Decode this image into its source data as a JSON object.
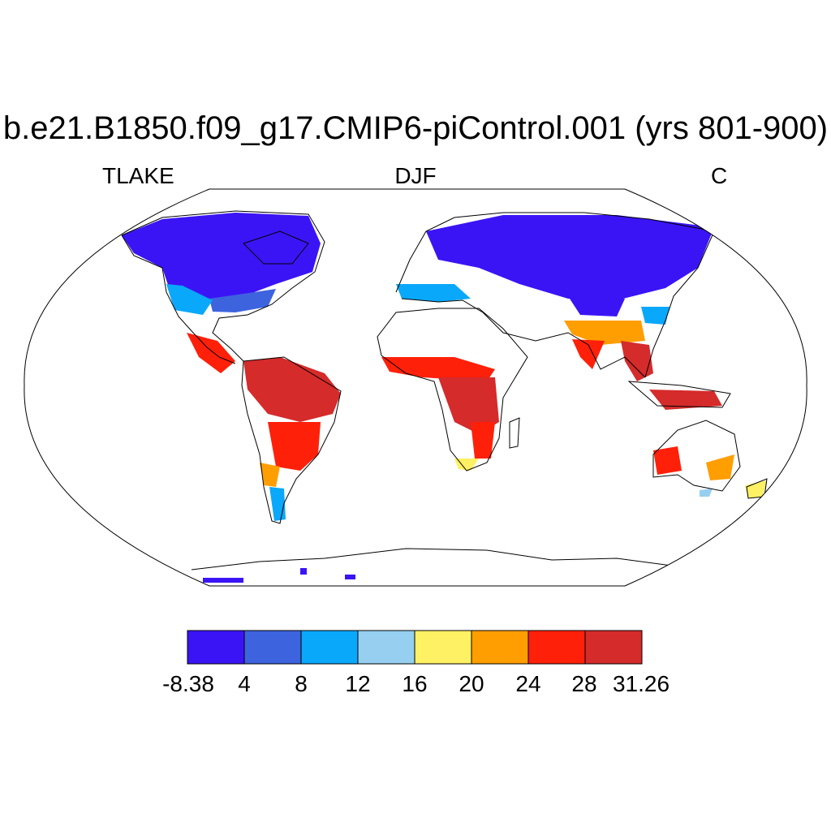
{
  "title": "b.e21.B1850.f09_g17.CMIP6-piControl.001 (yrs 801-900)",
  "subtitles": {
    "left": "TLAKE",
    "center": "DJF",
    "right": "C"
  },
  "colorbar": {
    "labels": [
      "-8.38",
      "4",
      "8",
      "12",
      "16",
      "20",
      "24",
      "28",
      "31.26"
    ],
    "colors": [
      "#3b14f5",
      "#3d64de",
      "#0aa8fa",
      "#96cff0",
      "#fff064",
      "#ff9e00",
      "#ff200a",
      "#d52b2b"
    ]
  },
  "map": {
    "projection": "Robinson",
    "land_fill": "#ffffff",
    "ocean_fill": "#ffffff"
  }
}
